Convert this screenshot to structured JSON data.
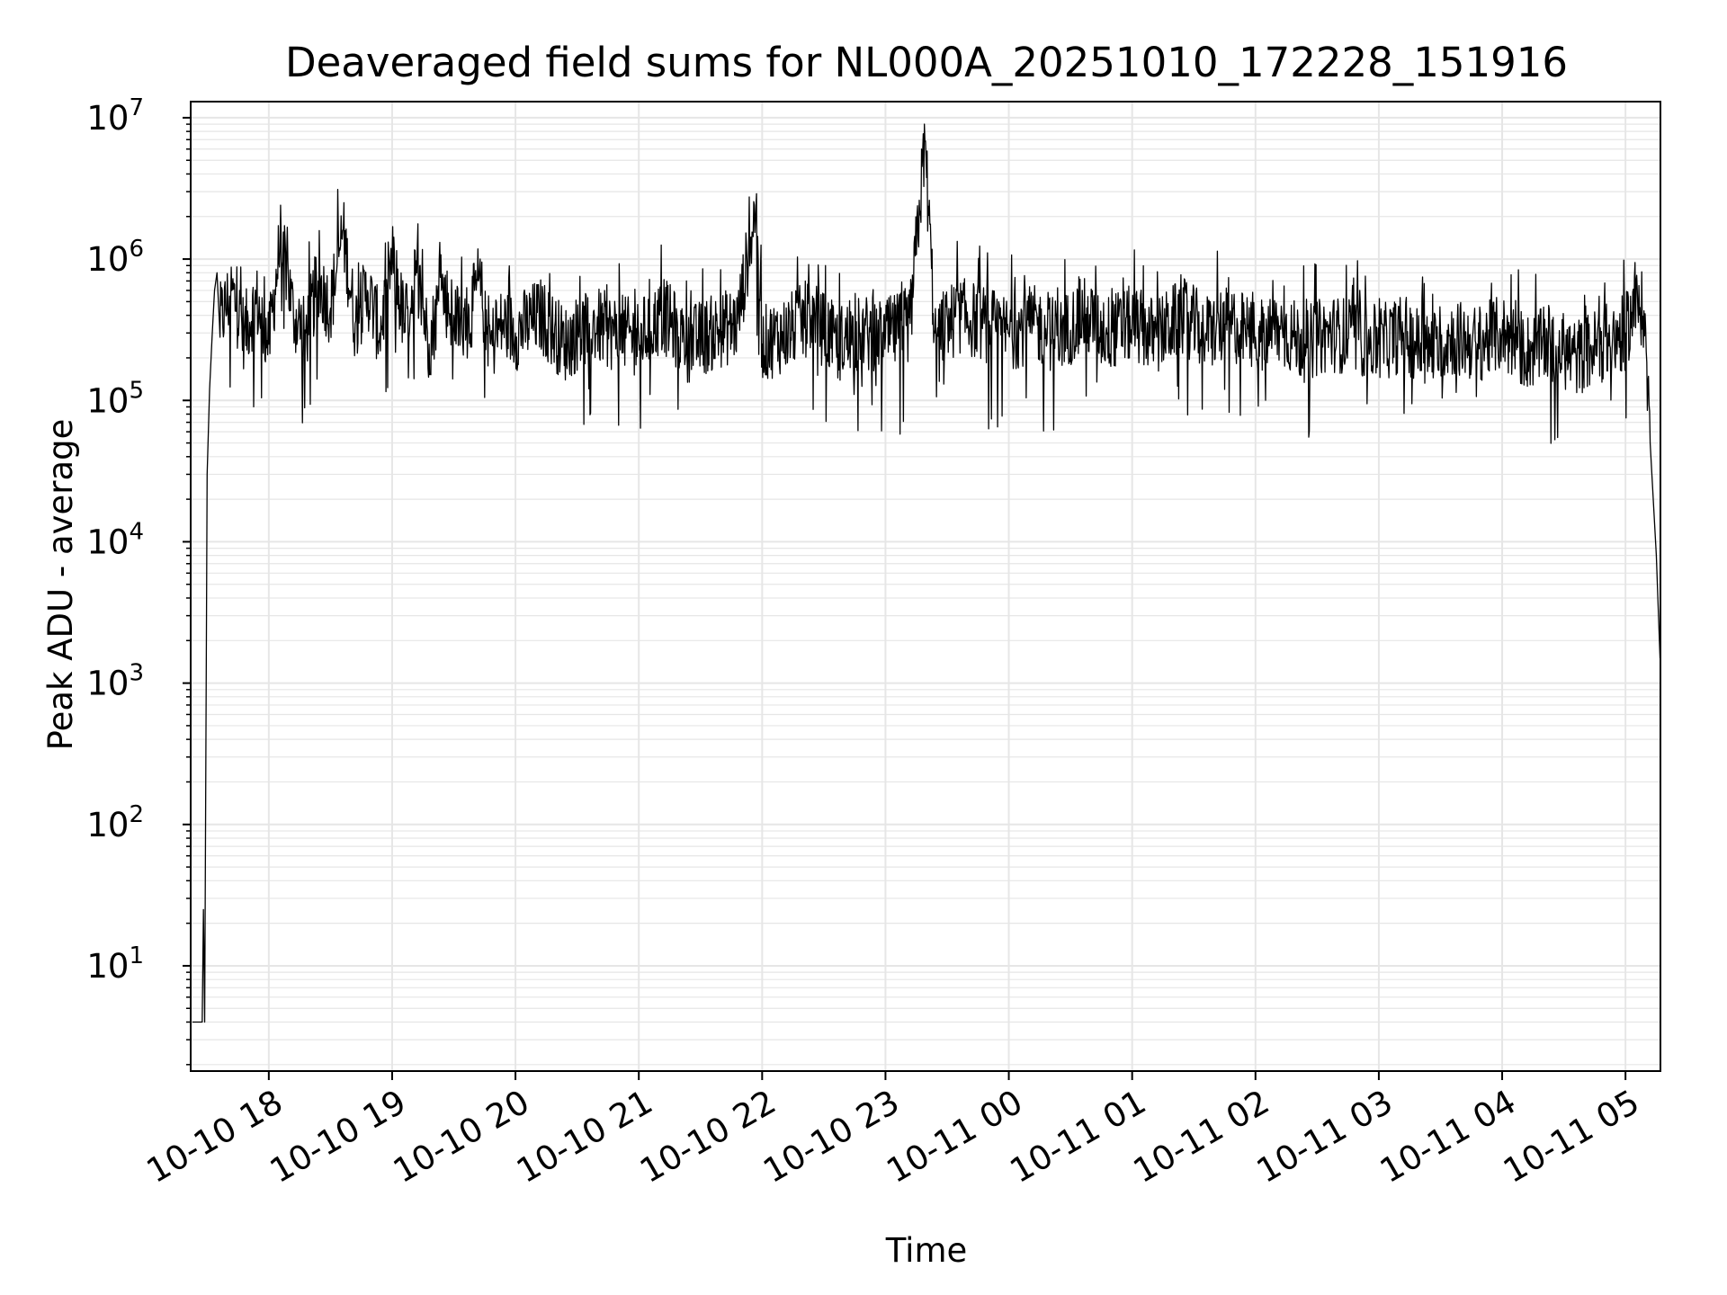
{
  "chart_data": {
    "type": "line",
    "title": "Deaveraged field sums for NL000A_20251010_172228_151916",
    "xlabel": "Time",
    "ylabel": "Peak ADU - average",
    "yscale": "log",
    "ylim": [
      1.8,
      13000000
    ],
    "xlim": [
      "2025-10-10 17:22",
      "2025-10-11 05:17"
    ],
    "grid": true,
    "line_color": "#000000",
    "grid_color": "#e6e6e6",
    "x_tick_labels": [
      "10-10 18",
      "10-10 19",
      "10-10 20",
      "10-10 21",
      "10-10 22",
      "10-10 23",
      "10-11 00",
      "10-11 01",
      "10-11 02",
      "10-11 03",
      "10-11 04",
      "10-11 05"
    ],
    "x_tick_hours": [
      18,
      19,
      20,
      21,
      22,
      23,
      24,
      25,
      26,
      27,
      28,
      29
    ],
    "y_ticks": [
      {
        "base": "10",
        "exp": "1",
        "value": 10
      },
      {
        "base": "10",
        "exp": "2",
        "value": 100
      },
      {
        "base": "10",
        "exp": "3",
        "value": 1000
      },
      {
        "base": "10",
        "exp": "4",
        "value": 10000
      },
      {
        "base": "10",
        "exp": "5",
        "value": 100000
      },
      {
        "base": "10",
        "exp": "6",
        "value": 1000000
      },
      {
        "base": "10",
        "exp": "7",
        "value": 10000000
      }
    ],
    "series": [
      {
        "name": "Peak ADU - average",
        "x_hours": [
          17.38,
          17.4,
          17.42,
          17.44,
          17.46,
          17.47,
          17.48,
          17.5,
          17.52,
          17.54,
          17.56,
          17.58,
          17.6,
          17.7,
          17.8,
          17.9,
          18.0,
          18.1,
          18.2,
          18.3,
          18.4,
          18.5,
          18.6,
          18.7,
          18.8,
          18.9,
          19.0,
          19.1,
          19.2,
          19.3,
          19.4,
          19.5,
          19.6,
          19.7,
          19.8,
          19.9,
          20.0,
          20.2,
          20.4,
          20.6,
          20.8,
          21.0,
          21.2,
          21.4,
          21.6,
          21.8,
          21.95,
          22.0,
          22.2,
          22.4,
          22.6,
          22.8,
          23.0,
          23.2,
          23.32,
          23.4,
          23.6,
          23.8,
          24.0,
          24.2,
          24.4,
          24.6,
          24.8,
          25.0,
          25.2,
          25.4,
          25.6,
          25.8,
          26.0,
          26.2,
          26.4,
          26.6,
          26.8,
          27.0,
          27.2,
          27.4,
          27.6,
          27.8,
          28.0,
          28.2,
          28.4,
          28.6,
          28.8,
          29.0,
          29.05,
          29.1,
          29.15,
          29.2,
          29.25,
          29.28
        ],
        "values": [
          4,
          4,
          4,
          4,
          4,
          25,
          4,
          30000,
          120000,
          280000,
          600000,
          800000,
          350000,
          600000,
          300000,
          500000,
          250000,
          1500000,
          400000,
          300000,
          700000,
          450000,
          1600000,
          350000,
          600000,
          300000,
          1000000,
          350000,
          800000,
          250000,
          600000,
          400000,
          300000,
          700000,
          250000,
          350000,
          300000,
          400000,
          250000,
          350000,
          300000,
          280000,
          400000,
          250000,
          300000,
          350000,
          2400000,
          250000,
          300000,
          400000,
          250000,
          300000,
          280000,
          350000,
          6800000,
          300000,
          400000,
          350000,
          300000,
          350000,
          280000,
          400000,
          300000,
          350000,
          280000,
          400000,
          300000,
          350000,
          280000,
          320000,
          250000,
          300000,
          280000,
          250000,
          300000,
          220000,
          280000,
          250000,
          300000,
          220000,
          250000,
          200000,
          250000,
          300000,
          420000,
          450000,
          430000,
          50000,
          8000,
          1500
        ]
      }
    ]
  }
}
